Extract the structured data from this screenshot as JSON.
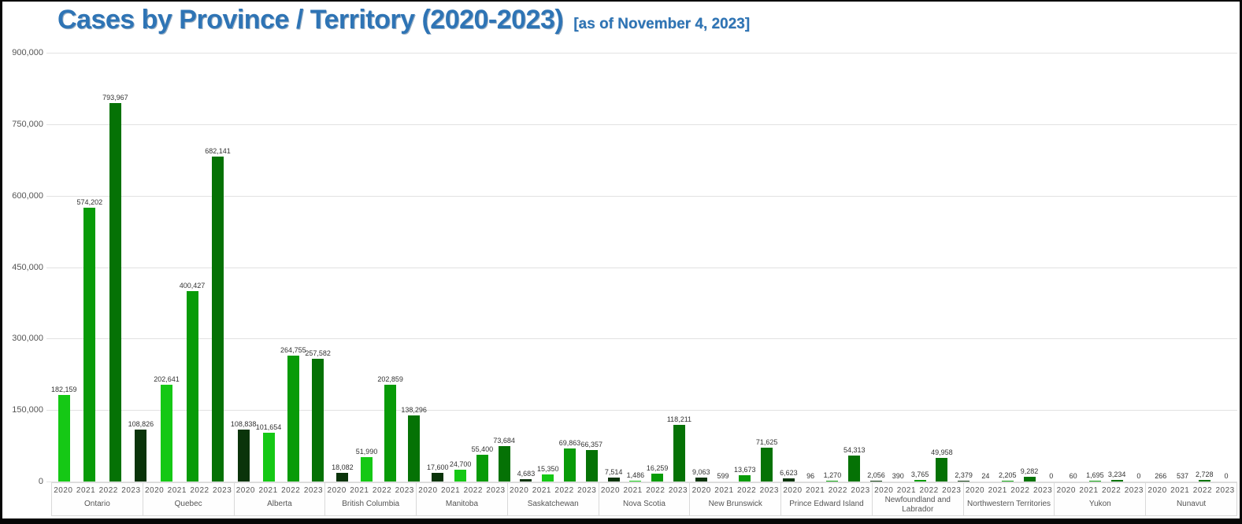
{
  "chart_data": {
    "type": "bar",
    "title": "Cases by Province / Territory (2020-2023)",
    "subtitle": "[as of November 4, 2023]",
    "xlabel": "",
    "ylabel": "",
    "ylim": [
      0,
      900000
    ],
    "ytick_interval": 150000,
    "yticks": [
      "900,000",
      "750,000",
      "600,000",
      "450,000",
      "300,000",
      "150,000",
      "0"
    ],
    "grid": true,
    "legend_position": "none",
    "years": [
      "2020",
      "2021",
      "2022",
      "2023"
    ],
    "groups": [
      {
        "province": "Ontario",
        "values": [
          182159,
          574202,
          793967,
          108826
        ]
      },
      {
        "province": "Quebec",
        "values": [
          202641,
          400427,
          682141,
          108838
        ]
      },
      {
        "province": "Alberta",
        "values": [
          101654,
          264755,
          257582,
          18082
        ]
      },
      {
        "province": "British Columbia",
        "values": [
          51990,
          202859,
          138296,
          17600
        ]
      },
      {
        "province": "Manitoba",
        "values": [
          24700,
          55400,
          73684,
          4683
        ]
      },
      {
        "province": "Saskatchewan",
        "values": [
          15350,
          69863,
          66357,
          7514
        ]
      },
      {
        "province": "Nova Scotia",
        "values": [
          1486,
          16259,
          118211,
          9063
        ]
      },
      {
        "province": "New Brunswick",
        "values": [
          599,
          13673,
          71625,
          6623
        ]
      },
      {
        "province": "Prince Edward Island",
        "values": [
          96,
          1270,
          54313,
          2056
        ]
      },
      {
        "province": "Newfoundland and Labrador",
        "values": [
          390,
          3765,
          49958,
          2379
        ]
      },
      {
        "province": "Northwestern Territories",
        "values": [
          24,
          2205,
          9282,
          0
        ]
      },
      {
        "province": "Yukon",
        "values": [
          60,
          1695,
          3234,
          0
        ]
      },
      {
        "province": "Nunavut",
        "values": [
          266,
          537,
          2728,
          0
        ]
      }
    ],
    "colors": {
      "title_blue": "#2E74B5",
      "year_2020": "#15C815",
      "year_2021": "#089B08",
      "year_2022": "#057205",
      "year_2023": "#0A340A",
      "gridline": "#E2E2E2",
      "cell_border": "#D9D9D9",
      "axis_text": "#555555",
      "value_text": "#333333",
      "frame_border": "#060606"
    }
  }
}
